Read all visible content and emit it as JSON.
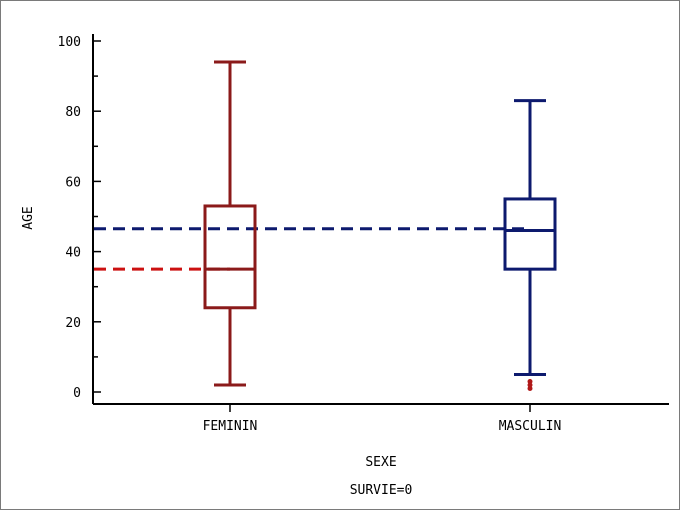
{
  "chart_data": {
    "type": "boxplot",
    "xlabel": "SEXE",
    "subtitle": "SURVIE=0",
    "ylabel": "AGE",
    "ylim": [
      0,
      100
    ],
    "yticks": [
      0,
      20,
      40,
      60,
      80,
      100
    ],
    "categories": [
      "FEMININ",
      "MASCULIN"
    ],
    "boxes": [
      {
        "category": "FEMININ",
        "color": "#8b1a1a",
        "min": 2,
        "q1": 24,
        "median": 35,
        "q3": 53,
        "max": 94,
        "outliers": []
      },
      {
        "category": "MASCULIN",
        "color": "#0d1a6e",
        "min": 5,
        "q1": 35,
        "median": 46,
        "q3": 55,
        "max": 83,
        "outliers": [
          1,
          2,
          3
        ]
      }
    ],
    "reference_lines": [
      {
        "category": "FEMININ",
        "value": 35,
        "color": "#cc1111",
        "style": "dashed"
      },
      {
        "category": "MASCULIN",
        "value": 46.5,
        "color": "#0d1a6e",
        "style": "dashed"
      }
    ],
    "outlier_color": "#b01818",
    "axis_color": "#000000"
  }
}
